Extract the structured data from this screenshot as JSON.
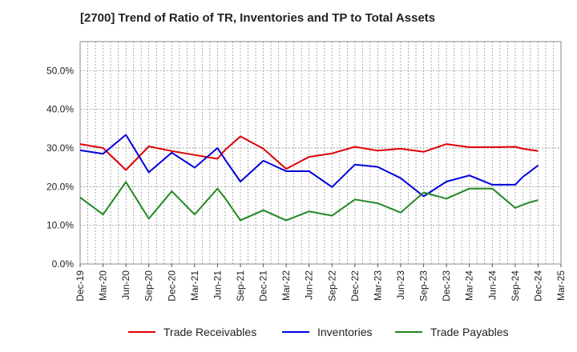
{
  "title": "[2700]  Trend of Ratio of TR, Inventories and TP to Total Assets",
  "chart_data": {
    "type": "line",
    "title": "[2700]  Trend of Ratio of TR, Inventories and TP to Total Assets",
    "xlabel": "",
    "ylabel": "",
    "ylim": [
      0,
      0.575
    ],
    "yticks": [
      0,
      0.1,
      0.2,
      0.3,
      0.4,
      0.5
    ],
    "ytick_labels": [
      "0.0%",
      "10.0%",
      "20.0%",
      "30.0%",
      "40.0%",
      "50.0%"
    ],
    "x_tick_labels": [
      "Dec-19",
      "Mar-20",
      "Jun-20",
      "Sep-20",
      "Dec-20",
      "Mar-21",
      "Jun-21",
      "Sep-21",
      "Dec-21",
      "Mar-22",
      "Jun-22",
      "Sep-22",
      "Dec-22",
      "Mar-23",
      "Jun-23",
      "Sep-23",
      "Dec-23",
      "Mar-24",
      "Jun-24",
      "Sep-24",
      "Dec-24",
      "Mar-25"
    ],
    "x": [
      "Dec-19",
      "Mar-20",
      "Jun-20",
      "Sep-20",
      "Dec-20",
      "Mar-21",
      "Jun-21",
      "Jul-21",
      "Sep-21",
      "Dec-21",
      "Mar-22",
      "Jun-22",
      "Sep-22",
      "Dec-22",
      "Mar-23",
      "Jun-23",
      "Sep-23",
      "Dec-23",
      "Mar-24",
      "Jun-24",
      "Sep-24",
      "Oct-24",
      "Nov-24",
      "Dec-24"
    ],
    "x_index": [
      0,
      1,
      2,
      3,
      4,
      5,
      6,
      6.33,
      7,
      8,
      9,
      10,
      11,
      12,
      13,
      14,
      15,
      16,
      17,
      18,
      19,
      19.33,
      19.67,
      20
    ],
    "grid": true,
    "legend_position": "bottom",
    "series": [
      {
        "name": "Trade Receivables",
        "color": "#e00000",
        "values": [
          0.31,
          0.3,
          0.243,
          0.304,
          0.292,
          0.282,
          0.272,
          0.295,
          0.33,
          0.298,
          0.246,
          0.277,
          0.286,
          0.303,
          0.293,
          0.298,
          0.29,
          0.31,
          0.302,
          0.302,
          0.303,
          0.298,
          0.295,
          0.292
        ]
      },
      {
        "name": "Inventories",
        "color": "#0000dd",
        "values": [
          0.294,
          0.285,
          0.334,
          0.237,
          0.288,
          0.249,
          0.3,
          0.27,
          0.213,
          0.267,
          0.24,
          0.24,
          0.199,
          0.257,
          0.251,
          0.222,
          0.175,
          0.213,
          0.229,
          0.205,
          0.205,
          0.225,
          0.24,
          0.255
        ]
      },
      {
        "name": "Trade Payables",
        "color": "#228822",
        "values": [
          0.172,
          0.128,
          0.212,
          0.117,
          0.188,
          0.128,
          0.195,
          0.17,
          0.113,
          0.139,
          0.113,
          0.136,
          0.125,
          0.167,
          0.157,
          0.133,
          0.185,
          0.169,
          0.195,
          0.195,
          0.145,
          0.153,
          0.16,
          0.165
        ]
      }
    ]
  }
}
